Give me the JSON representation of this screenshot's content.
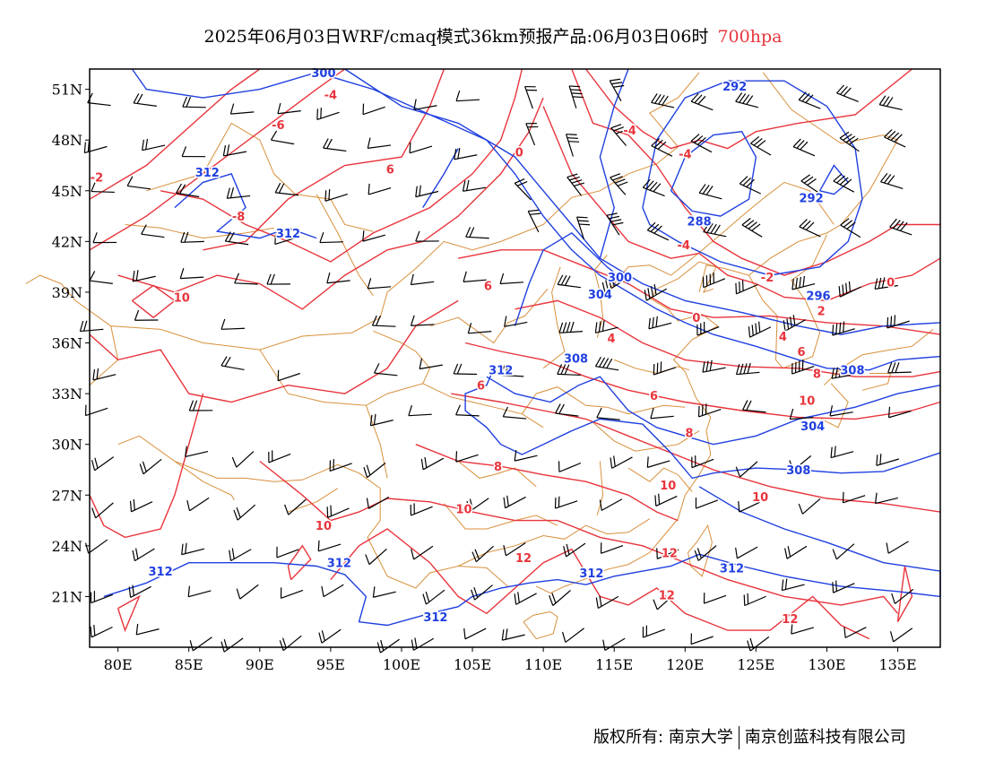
{
  "header": {
    "title": "2025年06月03日WRF/cmaq模式36km预报产品:06月03日06时",
    "level": "700hpa"
  },
  "axes": {
    "lat_labels": [
      "51N",
      "48N",
      "45N",
      "42N",
      "39N",
      "36N",
      "33N",
      "30N",
      "27N",
      "24N",
      "21N"
    ],
    "lat_values": [
      51,
      48,
      45,
      42,
      39,
      36,
      33,
      30,
      27,
      24,
      21
    ],
    "lon_labels": [
      "80E",
      "85E",
      "90E",
      "95E",
      "100E",
      "105E",
      "110E",
      "115E",
      "120E",
      "125E",
      "130E",
      "135E"
    ],
    "lon_values": [
      80,
      85,
      90,
      95,
      100,
      105,
      110,
      115,
      120,
      125,
      130,
      135
    ],
    "lon_range": [
      78,
      138
    ],
    "lat_range": [
      18,
      52.2
    ]
  },
  "contour_labels": {
    "geopotential": [
      {
        "text": "300",
        "lon": 94.5,
        "lat": 52
      },
      {
        "text": "312",
        "lon": 86.3,
        "lat": 46.1
      },
      {
        "text": "312",
        "lon": 92,
        "lat": 42.5
      },
      {
        "text": "292",
        "lon": 123.5,
        "lat": 51.2
      },
      {
        "text": "288",
        "lon": 121,
        "lat": 43.2
      },
      {
        "text": "292",
        "lon": 128.9,
        "lat": 44.6
      },
      {
        "text": "300",
        "lon": 115.4,
        "lat": 39.9
      },
      {
        "text": "304",
        "lon": 114,
        "lat": 38.9
      },
      {
        "text": "296",
        "lon": 129.4,
        "lat": 38.8
      },
      {
        "text": "308",
        "lon": 112.3,
        "lat": 35.1
      },
      {
        "text": "312",
        "lon": 107,
        "lat": 34.4
      },
      {
        "text": "308",
        "lon": 131.8,
        "lat": 34.4
      },
      {
        "text": "304",
        "lon": 129,
        "lat": 31.1
      },
      {
        "text": "308",
        "lon": 128,
        "lat": 28.5
      },
      {
        "text": "312",
        "lon": 95.6,
        "lat": 23
      },
      {
        "text": "312",
        "lon": 83,
        "lat": 22.5
      },
      {
        "text": "312",
        "lon": 113.4,
        "lat": 22.4
      },
      {
        "text": "312",
        "lon": 123.3,
        "lat": 22.7
      },
      {
        "text": "312",
        "lon": 102.4,
        "lat": 19.8
      }
    ],
    "temperature": [
      {
        "text": "-4",
        "lon": 95,
        "lat": 50.7
      },
      {
        "text": "-6",
        "lon": 91.3,
        "lat": 48.9
      },
      {
        "text": "-2",
        "lon": 78.5,
        "lat": 45.8
      },
      {
        "text": "-8",
        "lon": 88.5,
        "lat": 43.5
      },
      {
        "text": "-4",
        "lon": 116.1,
        "lat": 48.6
      },
      {
        "text": "-4",
        "lon": 120,
        "lat": 47.2
      },
      {
        "text": "0",
        "lon": 108.3,
        "lat": 47.3
      },
      {
        "text": "6",
        "lon": 99.2,
        "lat": 46.3
      },
      {
        "text": "-4",
        "lon": 119.9,
        "lat": 41.8
      },
      {
        "text": "-2",
        "lon": 125.8,
        "lat": 39.9
      },
      {
        "text": "0",
        "lon": 134.5,
        "lat": 39.6
      },
      {
        "text": "6",
        "lon": 106.1,
        "lat": 39.4
      },
      {
        "text": "10",
        "lon": 84.5,
        "lat": 38.7
      },
      {
        "text": "0",
        "lon": 120.8,
        "lat": 37.5
      },
      {
        "text": "2",
        "lon": 129.6,
        "lat": 37.9
      },
      {
        "text": "4",
        "lon": 126.9,
        "lat": 36.4
      },
      {
        "text": "4",
        "lon": 114.8,
        "lat": 36.3
      },
      {
        "text": "6",
        "lon": 128.2,
        "lat": 35.5
      },
      {
        "text": "8",
        "lon": 129.3,
        "lat": 34.2
      },
      {
        "text": "10",
        "lon": 128.6,
        "lat": 32.6
      },
      {
        "text": "6",
        "lon": 117.8,
        "lat": 32.9
      },
      {
        "text": "8",
        "lon": 120.3,
        "lat": 30.7
      },
      {
        "text": "6",
        "lon": 105.6,
        "lat": 33.5
      },
      {
        "text": "8",
        "lon": 106.8,
        "lat": 28.7
      },
      {
        "text": "10",
        "lon": 118.8,
        "lat": 27.6
      },
      {
        "text": "10",
        "lon": 125.3,
        "lat": 26.9
      },
      {
        "text": "10",
        "lon": 104.4,
        "lat": 26.2
      },
      {
        "text": "10",
        "lon": 94.5,
        "lat": 25.2
      },
      {
        "text": "12",
        "lon": 108.6,
        "lat": 23.3
      },
      {
        "text": "12",
        "lon": 118.9,
        "lat": 23.6
      },
      {
        "text": "12",
        "lon": 118.7,
        "lat": 21.1
      },
      {
        "text": "12",
        "lon": 127.4,
        "lat": 19.7
      }
    ]
  },
  "colors": {
    "temperature": "#e8343c",
    "geopotential": "#2040e0",
    "boundaries": "#d8903c",
    "barbs": "#000000",
    "frame": "#000000"
  },
  "wind_barb_icon": "wind-barb-icon",
  "footer": {
    "copyright": "版权所有: 南京大学",
    "company": "南京创蓝科技有限公司"
  }
}
